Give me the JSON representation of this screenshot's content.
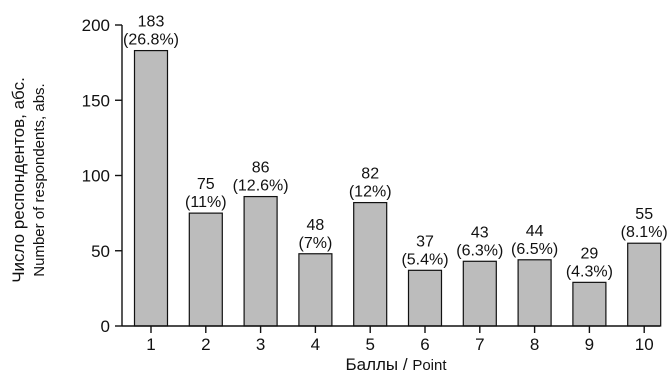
{
  "chart_data": {
    "type": "bar",
    "categories": [
      "1",
      "2",
      "3",
      "4",
      "5",
      "6",
      "7",
      "8",
      "9",
      "10"
    ],
    "values": [
      183,
      75,
      86,
      48,
      82,
      37,
      43,
      44,
      29,
      55
    ],
    "value_labels": [
      "183",
      "75",
      "86",
      "48",
      "82",
      "37",
      "43",
      "44",
      "29",
      "55"
    ],
    "percent_labels": [
      "(26.8%)",
      "(11%)",
      "(12.6%)",
      "(7%)",
      "(12%)",
      "(5.4%)",
      "(6.3%)",
      "(6.5%)",
      "(4.3%)",
      "(8.1%)"
    ],
    "xlabel_ru": "Баллы",
    "xlabel_sep": " / ",
    "xlabel_en": "Point",
    "ylabel_ru": "Число респондентов, абс.",
    "ylabel_en": "Number of respondents, abs.",
    "ylim": [
      0,
      200
    ],
    "yticks": [
      0,
      50,
      100,
      150,
      200
    ],
    "grid": false,
    "bar_color": "#bcbcbc",
    "bar_edge_color": "#111111"
  }
}
